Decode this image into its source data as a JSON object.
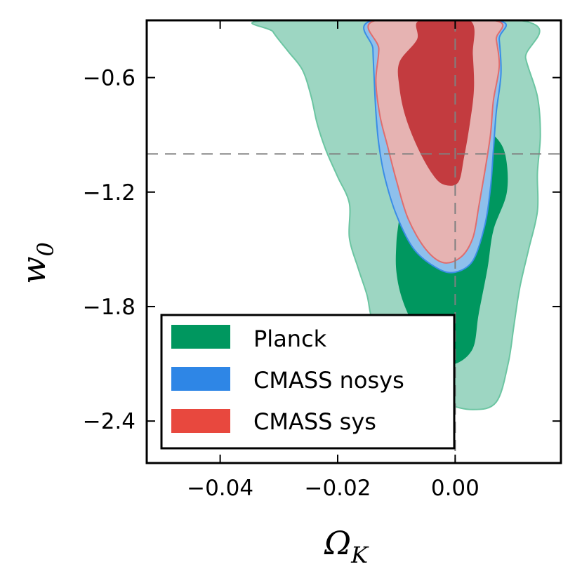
{
  "chart_data": {
    "type": "contour",
    "title": "",
    "xlabel": "Ω",
    "xlabel_sub": "K",
    "ylabel": "w",
    "ylabel_sub": "0",
    "xlim": [
      -0.0525,
      0.018
    ],
    "ylim": [
      -2.62,
      -0.3
    ],
    "xticks": [
      -0.04,
      -0.02,
      0.0
    ],
    "xtick_labels": [
      "−0.04",
      "−0.02",
      "0.00"
    ],
    "yticks": [
      -0.6,
      -1.2,
      -1.8,
      -2.4
    ],
    "ytick_labels": [
      "−0.6",
      "−1.2",
      "−1.8",
      "−2.4"
    ],
    "reference_lines": {
      "x": 0.0,
      "y": -1.0
    },
    "colors": {
      "planck_outer": "#9dd6c2",
      "planck_inner": "#00975f",
      "planck_edge": "#6cc5a2",
      "nosys_outer": "#8ec0ec",
      "nosys_edge": "#3a8de6",
      "sys_outer": "#e6b3b2",
      "sys_inner": "#c33b3f",
      "sys_edge": "#e06d6d",
      "legend_planck": "#00975f",
      "legend_nosys": "#2e86e6",
      "legend_sys": "#e8483e",
      "reference_line": "#808080"
    },
    "legend": [
      {
        "label": "Planck",
        "swatch": "legend_planck"
      },
      {
        "label": "CMASS nosys",
        "swatch": "legend_nosys"
      },
      {
        "label": "CMASS sys",
        "swatch": "legend_sys"
      }
    ],
    "series": [
      {
        "name": "Planck 95%",
        "fill": "planck_outer",
        "stroke": "planck_edge",
        "points": [
          [
            -0.0315,
            -0.3
          ],
          [
            -0.031,
            -0.36
          ],
          [
            -0.0285,
            -0.46
          ],
          [
            -0.026,
            -0.56
          ],
          [
            -0.0245,
            -0.7
          ],
          [
            -0.0235,
            -0.84
          ],
          [
            -0.022,
            -0.98
          ],
          [
            -0.02,
            -1.12
          ],
          [
            -0.018,
            -1.26
          ],
          [
            -0.018,
            -1.44
          ],
          [
            -0.0165,
            -1.6
          ],
          [
            -0.015,
            -1.74
          ],
          [
            -0.014,
            -1.88
          ],
          [
            -0.011,
            -2.04
          ],
          [
            -0.008,
            -2.18
          ],
          [
            -0.002,
            -2.3
          ],
          [
            0.003,
            -2.34
          ],
          [
            0.007,
            -2.3
          ],
          [
            0.009,
            -2.1
          ],
          [
            0.01,
            -1.9
          ],
          [
            0.011,
            -1.7
          ],
          [
            0.0125,
            -1.5
          ],
          [
            0.014,
            -1.3
          ],
          [
            0.014,
            -1.1
          ],
          [
            0.0145,
            -0.9
          ],
          [
            0.014,
            -0.7
          ],
          [
            0.012,
            -0.5
          ],
          [
            0.011,
            -0.3
          ]
        ]
      },
      {
        "name": "Planck 68%",
        "fill": "planck_inner",
        "stroke": "",
        "points": [
          [
            -0.0118,
            -0.98
          ],
          [
            -0.0115,
            -1.1
          ],
          [
            -0.0095,
            -1.26
          ],
          [
            -0.01,
            -1.46
          ],
          [
            -0.01,
            -1.62
          ],
          [
            -0.0088,
            -1.78
          ],
          [
            -0.006,
            -1.96
          ],
          [
            -0.003,
            -2.08
          ],
          [
            0.0,
            -2.1
          ],
          [
            0.003,
            -2.02
          ],
          [
            0.004,
            -1.84
          ],
          [
            0.0055,
            -1.6
          ],
          [
            0.0065,
            -1.4
          ],
          [
            0.0088,
            -1.2
          ],
          [
            0.0085,
            -1.0
          ],
          [
            0.0065,
            -0.9
          ],
          [
            0.004,
            -0.87
          ],
          [
            0.0,
            -0.86
          ],
          [
            -0.004,
            -0.88
          ],
          [
            -0.009,
            -0.92
          ]
        ]
      },
      {
        "name": "CMASS nosys 95%",
        "fill": "nosys_outer",
        "stroke": "nosys_edge",
        "points": [
          [
            -0.014,
            -0.3
          ],
          [
            -0.014,
            -0.45
          ],
          [
            -0.0138,
            -0.6
          ],
          [
            -0.0135,
            -0.78
          ],
          [
            -0.013,
            -0.95
          ],
          [
            -0.012,
            -1.12
          ],
          [
            -0.01,
            -1.32
          ],
          [
            -0.007,
            -1.5
          ],
          [
            -0.003,
            -1.6
          ],
          [
            0.0,
            -1.62
          ],
          [
            0.003,
            -1.56
          ],
          [
            0.005,
            -1.38
          ],
          [
            0.006,
            -1.18
          ],
          [
            0.0065,
            -0.98
          ],
          [
            0.007,
            -0.78
          ],
          [
            0.0078,
            -0.58
          ],
          [
            0.0075,
            -0.4
          ],
          [
            0.007,
            -0.3
          ]
        ]
      },
      {
        "name": "CMASS sys 95%",
        "fill": "sys_outer",
        "stroke": "sys_edge",
        "points": [
          [
            -0.0135,
            -0.3
          ],
          [
            -0.013,
            -0.45
          ],
          [
            -0.0135,
            -0.62
          ],
          [
            -0.0128,
            -0.8
          ],
          [
            -0.0115,
            -0.96
          ],
          [
            -0.01,
            -1.14
          ],
          [
            -0.008,
            -1.34
          ],
          [
            -0.005,
            -1.5
          ],
          [
            -0.002,
            -1.57
          ],
          [
            0.001,
            -1.54
          ],
          [
            0.003,
            -1.44
          ],
          [
            0.004,
            -1.28
          ],
          [
            0.005,
            -1.1
          ],
          [
            0.006,
            -0.9
          ],
          [
            0.0065,
            -0.72
          ],
          [
            0.0075,
            -0.54
          ],
          [
            0.007,
            -0.4
          ],
          [
            0.0065,
            -0.3
          ]
        ]
      },
      {
        "name": "CMASS sys 68%",
        "fill": "sys_inner",
        "stroke": "",
        "points": [
          [
            -0.006,
            -0.3
          ],
          [
            -0.0065,
            -0.4
          ],
          [
            -0.0095,
            -0.52
          ],
          [
            -0.0095,
            -0.65
          ],
          [
            -0.0085,
            -0.8
          ],
          [
            -0.0065,
            -0.96
          ],
          [
            -0.004,
            -1.1
          ],
          [
            -0.002,
            -1.16
          ],
          [
            0.0005,
            -1.15
          ],
          [
            0.0015,
            -1.02
          ],
          [
            0.0025,
            -0.84
          ],
          [
            0.0032,
            -0.66
          ],
          [
            0.003,
            -0.48
          ],
          [
            0.0025,
            -0.3
          ]
        ]
      }
    ]
  }
}
